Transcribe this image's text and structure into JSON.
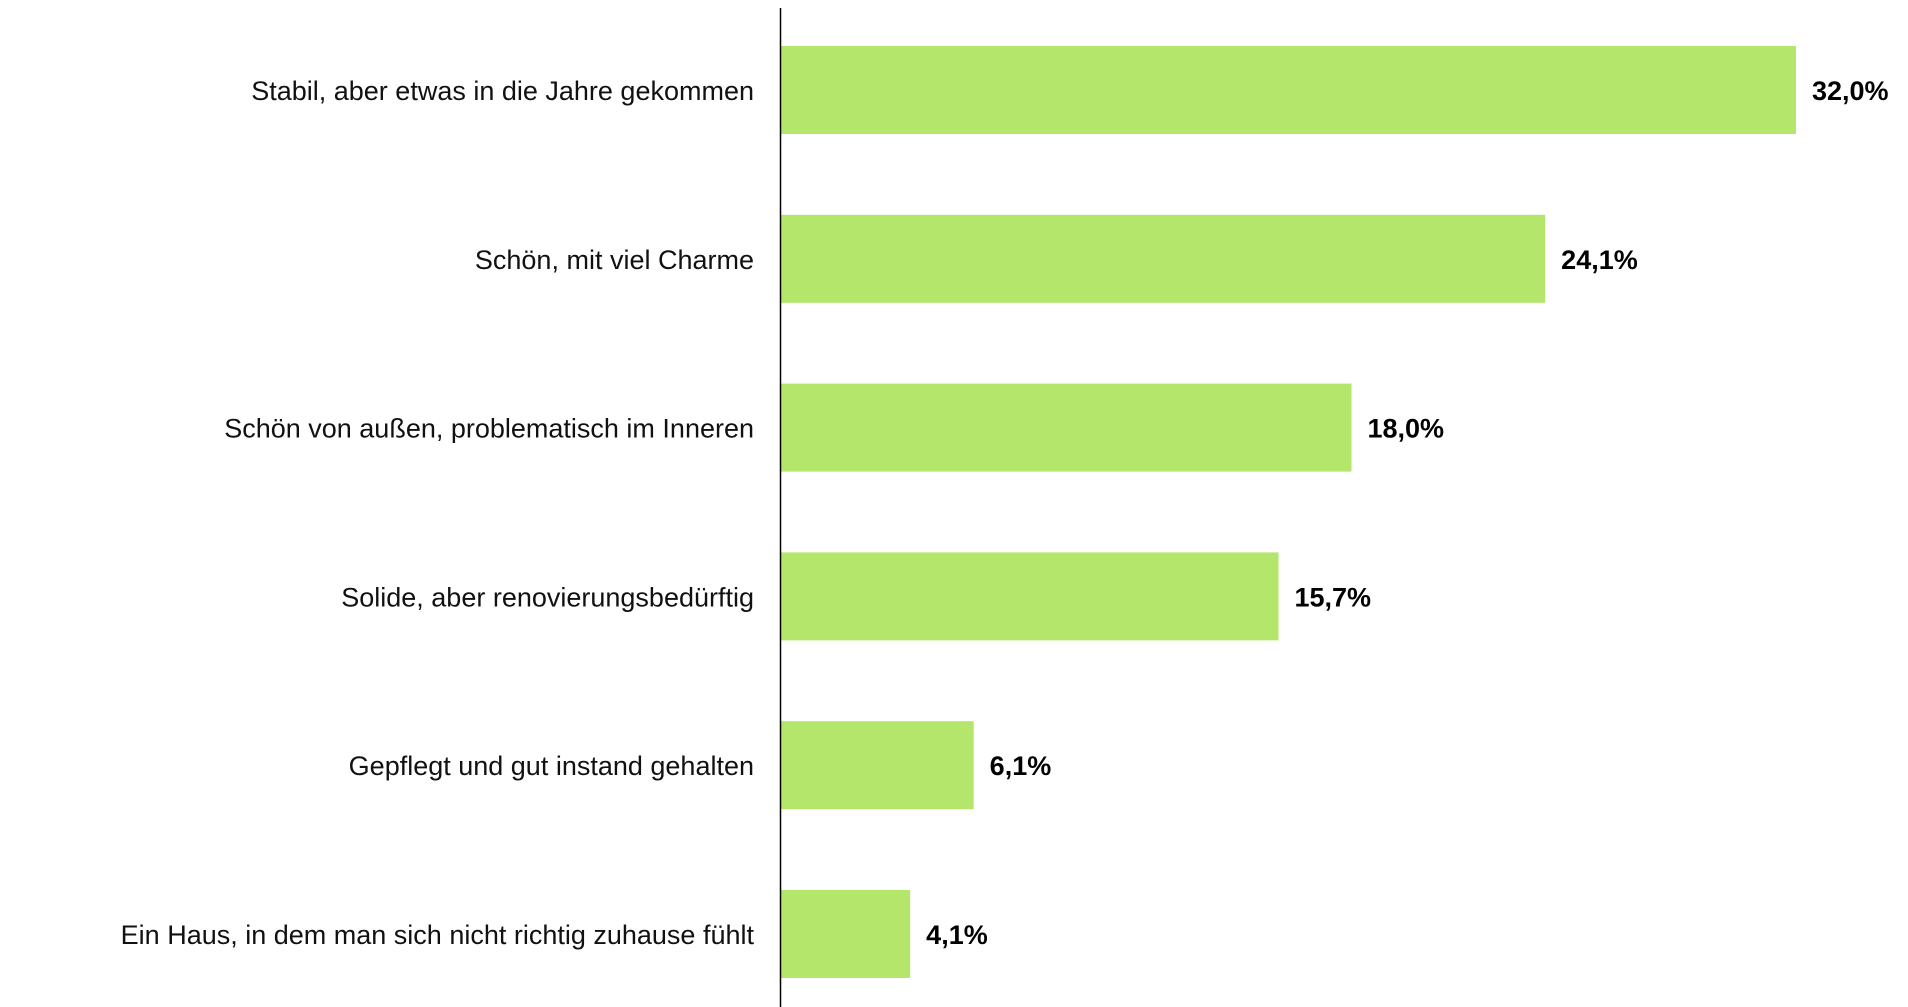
{
  "chart_data": {
    "type": "bar",
    "orientation": "horizontal",
    "categories": [
      "Stabil, aber etwas in die Jahre gekommen",
      "Schön, mit viel Charme",
      "Schön von außen, problematisch im Inneren",
      "Solide, aber renovierungsbedürftig",
      "Gepflegt und gut instand gehalten",
      "Ein Haus, in dem man sich nicht richtig zuhause fühlt"
    ],
    "values": [
      32.0,
      24.1,
      18.0,
      15.7,
      6.1,
      4.1
    ],
    "value_labels": [
      "32,0%",
      "24,1%",
      "18,0%",
      "15,7%",
      "6,1%",
      "4,1%"
    ],
    "xlim": [
      0,
      32.0
    ],
    "grid": false,
    "legend": "none",
    "title": "",
    "xlabel": "",
    "ylabel": "",
    "colors": {
      "bar": "#b3e66b",
      "axis": "#000000",
      "text": "#111111"
    }
  }
}
